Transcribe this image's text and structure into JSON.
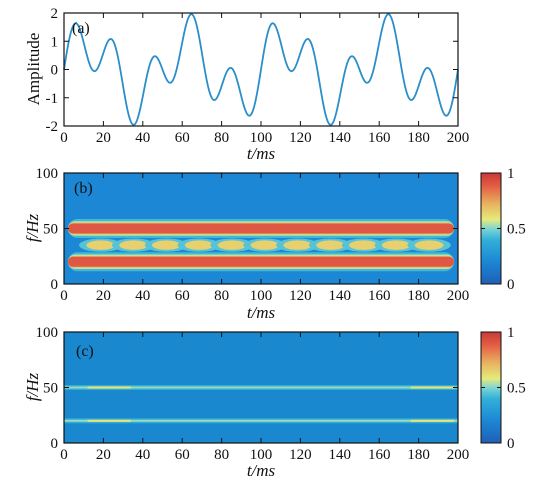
{
  "chart_data": [
    {
      "type": "line",
      "panel_label": "(a)",
      "xlabel": "t/ms",
      "ylabel": "Amplitude",
      "xlim": [
        0,
        200
      ],
      "ylim": [
        -2,
        2
      ],
      "x_ticks": [
        "0",
        "20",
        "40",
        "60",
        "80",
        "100",
        "120",
        "140",
        "160",
        "180",
        "200"
      ],
      "y_ticks": [
        "-2",
        "-1",
        "0",
        "1",
        "2"
      ],
      "series": [
        {
          "formula": "sin(2π·20·t) + sin(2π·50·t), t in seconds",
          "freqs_hz": [
            20,
            50
          ],
          "amplitudes": [
            1,
            1
          ],
          "color": "#2a8ec9"
        }
      ]
    },
    {
      "type": "heatmap",
      "panel_label": "(b)",
      "xlabel": "t/ms",
      "ylabel": "f/Hz",
      "xlim": [
        0,
        200
      ],
      "ylim": [
        0,
        100
      ],
      "x_ticks": [
        "0",
        "20",
        "40",
        "60",
        "80",
        "100",
        "120",
        "140",
        "160",
        "180",
        "200"
      ],
      "y_ticks": [
        "0",
        "50",
        "100"
      ],
      "colorbar_ticks": [
        "0",
        "0.5",
        "1"
      ],
      "colorbar_range": [
        0,
        1
      ],
      "bands": [
        {
          "freq_hz": 50,
          "value": 1,
          "freq_width_hz": 9
        },
        {
          "freq_hz": 20,
          "value": 1,
          "freq_width_hz": 9
        }
      ],
      "cross_term": {
        "freq_hz": 35,
        "peak_value": 0.9,
        "modulation_hz": 30
      },
      "time_extent_ms": [
        2,
        198
      ]
    },
    {
      "type": "heatmap",
      "panel_label": "(c)",
      "xlabel": "t/ms",
      "ylabel": "f/Hz",
      "xlim": [
        0,
        200
      ],
      "ylim": [
        0,
        100
      ],
      "x_ticks": [
        "0",
        "20",
        "40",
        "60",
        "80",
        "100",
        "120",
        "140",
        "160",
        "180",
        "200"
      ],
      "y_ticks": [
        "0",
        "50",
        "100"
      ],
      "colorbar_ticks": [
        "0",
        "0.5",
        "1"
      ],
      "colorbar_range": [
        0,
        1
      ],
      "ridges": [
        {
          "freq_hz": 50,
          "time_extent_ms": [
            0,
            200
          ]
        },
        {
          "freq_hz": 20,
          "time_extent_ms": [
            0,
            200
          ]
        }
      ],
      "background_value": 0.2
    }
  ],
  "colors": {
    "colormap": [
      "#1f5fb6",
      "#1c87d4",
      "#32b0d9",
      "#7fd6d2",
      "#e6eb7b",
      "#e8b35f",
      "#e45e45",
      "#c83a38"
    ],
    "line": "#2a8ec9",
    "axis": "#111111"
  }
}
